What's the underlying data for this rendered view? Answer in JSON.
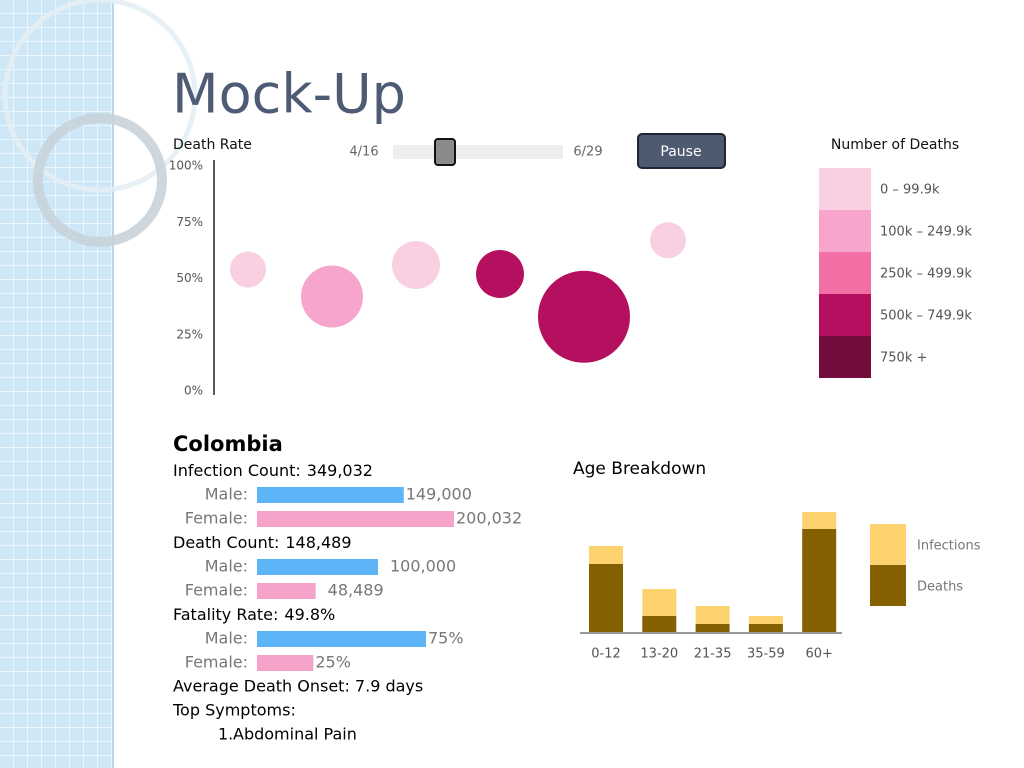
{
  "header": {
    "title": "Mock-Up"
  },
  "bubble_chart": {
    "type": "scatter",
    "y_label": "Death Rate",
    "ylim": [
      0,
      100
    ],
    "yticks": [
      {
        "value": 0,
        "label": "0%"
      },
      {
        "value": 25,
        "label": "25%"
      },
      {
        "value": 50,
        "label": "50%"
      },
      {
        "value": 75,
        "label": "75%"
      },
      {
        "value": 100,
        "label": "100%"
      }
    ],
    "values": [
      54,
      42,
      56,
      52,
      33,
      67
    ],
    "sizes": [
      18,
      31,
      24,
      24,
      46,
      18
    ],
    "colors": [
      "#f9d0e2",
      "#f7a5cc",
      "#f9d0e2",
      "#b5105f",
      "#b5105f",
      "#f9d0e2"
    ]
  },
  "slider": {
    "start": "4/16",
    "end": "6/29",
    "button": "Pause"
  },
  "deaths_legend": {
    "title": "Number of Deaths",
    "bins": [
      {
        "label": "0 – 99.9k",
        "color": "#f9d0e2"
      },
      {
        "label": "100k – 249.9k",
        "color": "#f7a5cc"
      },
      {
        "label": "250k – 499.9k",
        "color": "#f26fa6"
      },
      {
        "label": "500k – 749.9k",
        "color": "#b5105f"
      },
      {
        "label": "750k +",
        "color": "#720c3d"
      }
    ]
  },
  "details": {
    "country": "Colombia",
    "groups": [
      {
        "label": "Infection Count:",
        "total": "349,032",
        "rows": [
          {
            "label": "Male:",
            "value": 149000,
            "value_label": "149,000"
          },
          {
            "label": "Female:",
            "value": 200032,
            "value_label": "200,032"
          }
        ]
      },
      {
        "label": "Death Count:",
        "total": "148,489",
        "rows": [
          {
            "label": "Male:",
            "value": 100000,
            "value_label": "100,000"
          },
          {
            "label": "Female:",
            "value": 48489,
            "value_label": "48,489"
          }
        ]
      },
      {
        "label": "Fatality Rate:",
        "total": "49.8%",
        "rows": [
          {
            "label": "Male:",
            "value": 75,
            "value_label": "75%"
          },
          {
            "label": "Female:",
            "value": 25,
            "value_label": "25%"
          }
        ]
      }
    ],
    "male_color": "#5db4f7",
    "female_color": "#f6a3cb",
    "onset": "Average Death Onset: 7.9 days",
    "symptoms_label": "Top Symptoms:",
    "symptoms": [
      "Abdominal Pain"
    ]
  },
  "age_chart": {
    "type": "bar",
    "stacked": true,
    "title": "Age Breakdown",
    "categories": [
      "0-12",
      "13-20",
      "21-35",
      "35-59",
      "60+"
    ],
    "series": [
      {
        "name": "Deaths",
        "color": "#856000",
        "values": [
          68,
          16,
          8,
          8,
          103
        ]
      },
      {
        "name": "Infections",
        "color": "#fcd36e",
        "values": [
          18,
          27,
          18,
          8,
          17
        ]
      }
    ]
  }
}
